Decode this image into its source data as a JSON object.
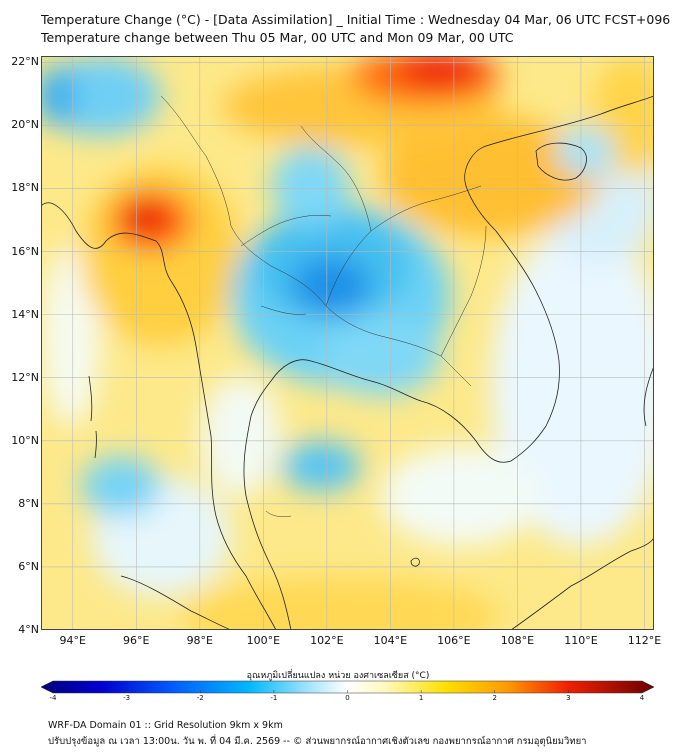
{
  "header": {
    "title": "Temperature Change (°C) - [Data Assimilation] _ Initial Time : Wednesday 04 Mar, 06 UTC FCST+096",
    "subtitle": "Temperature change between Thu 05 Mar, 00 UTC and Mon 09 Mar, 00 UTC"
  },
  "map": {
    "lat_labels": [
      "22°N",
      "20°N",
      "18°N",
      "16°N",
      "14°N",
      "12°N",
      "10°N",
      "8°N",
      "6°N",
      "4°N"
    ],
    "lon_labels": [
      "94°E",
      "96°E",
      "98°E",
      "100°E",
      "102°E",
      "104°E",
      "106°E",
      "108°E",
      "110°E",
      "112°E"
    ],
    "lat_values": [
      22,
      20,
      18,
      16,
      14,
      12,
      10,
      8,
      6,
      4
    ],
    "lon_values": [
      94,
      96,
      98,
      100,
      102,
      104,
      106,
      108,
      110,
      112
    ],
    "extent": {
      "lon_min": 93.0,
      "lon_max": 112.3,
      "lat_min": 4.0,
      "lat_max": 22.2
    }
  },
  "colorbar": {
    "label": "อุณหภูมิเปลี่ยนแปลง หน่วย องศาเซลเซียส (°C)",
    "ticks": [
      "-4",
      "-3",
      "-2",
      "-1",
      "0",
      "1",
      "2",
      "3",
      "4"
    ],
    "tick_values": [
      -4,
      -3,
      -2,
      -1,
      0,
      1,
      2,
      3,
      4
    ],
    "min": -4,
    "max": 4
  },
  "footer": {
    "line1": "WRF-DA Domain 01 :: Grid Resolution 9km x 9km",
    "line2": "ปรับปรุงข้อมูล ณ เวลา 13:00น. วัน พ. ที่ 04 มี.ค. 2569 -- © ส่วนพยากรณ์อากาศเชิงตัวเลข กองพยากรณ์อากาศ กรมอุตุนิยมวิทยา"
  },
  "colors": {
    "cold_max": "#0000a0",
    "cool": "#00a0ff",
    "neutral": "#ffffff",
    "warm": "#ffe000",
    "hot_max": "#800000"
  }
}
